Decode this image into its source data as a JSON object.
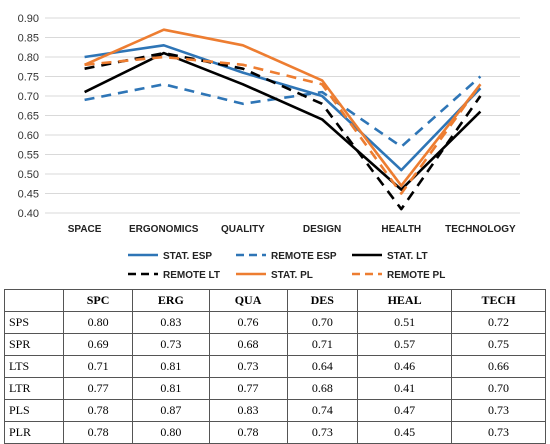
{
  "chart_data": {
    "type": "line",
    "categories": [
      "SPACE",
      "ERGONOMICS",
      "QUALITY",
      "DESIGN",
      "HEALTH",
      "TECHNOLOGY"
    ],
    "ylim": [
      0.4,
      0.9
    ],
    "yticks": [
      "0.40",
      "0.45",
      "0.50",
      "0.55",
      "0.60",
      "0.65",
      "0.70",
      "0.75",
      "0.80",
      "0.85",
      "0.90"
    ],
    "grid": true,
    "legend_position": "bottom",
    "series": [
      {
        "name": "STAT. ESP",
        "color": "#2e75b6",
        "dashed": false,
        "values": [
          0.8,
          0.83,
          0.76,
          0.7,
          0.51,
          0.72
        ]
      },
      {
        "name": "REMOTE ESP",
        "color": "#2e75b6",
        "dashed": true,
        "values": [
          0.69,
          0.73,
          0.68,
          0.71,
          0.57,
          0.75
        ]
      },
      {
        "name": "STAT. LT",
        "color": "#000000",
        "dashed": false,
        "values": [
          0.71,
          0.81,
          0.73,
          0.64,
          0.46,
          0.66
        ]
      },
      {
        "name": "REMOTE LT",
        "color": "#000000",
        "dashed": true,
        "values": [
          0.77,
          0.81,
          0.77,
          0.68,
          0.41,
          0.7
        ]
      },
      {
        "name": "STAT. PL",
        "color": "#ed7d31",
        "dashed": false,
        "values": [
          0.78,
          0.87,
          0.83,
          0.74,
          0.47,
          0.73
        ]
      },
      {
        "name": "REMOTE PL",
        "color": "#ed7d31",
        "dashed": true,
        "values": [
          0.78,
          0.8,
          0.78,
          0.73,
          0.45,
          0.73
        ]
      }
    ]
  },
  "table": {
    "headers": [
      "",
      "SPC",
      "ERG",
      "QUA",
      "DES",
      "HEAL",
      "TECH"
    ],
    "rows": [
      {
        "label": "SPS",
        "values": [
          "0.80",
          "0.83",
          "0.76",
          "0.70",
          "0.51",
          "0.72"
        ]
      },
      {
        "label": "SPR",
        "values": [
          "0.69",
          "0.73",
          "0.68",
          "0.71",
          "0.57",
          "0.75"
        ]
      },
      {
        "label": "LTS",
        "values": [
          "0.71",
          "0.81",
          "0.73",
          "0.64",
          "0.46",
          "0.66"
        ]
      },
      {
        "label": "LTR",
        "values": [
          "0.77",
          "0.81",
          "0.77",
          "0.68",
          "0.41",
          "0.70"
        ]
      },
      {
        "label": "PLS",
        "values": [
          "0.78",
          "0.87",
          "0.83",
          "0.74",
          "0.47",
          "0.73"
        ]
      },
      {
        "label": "PLR",
        "values": [
          "0.78",
          "0.80",
          "0.78",
          "0.73",
          "0.45",
          "0.73"
        ]
      }
    ]
  }
}
